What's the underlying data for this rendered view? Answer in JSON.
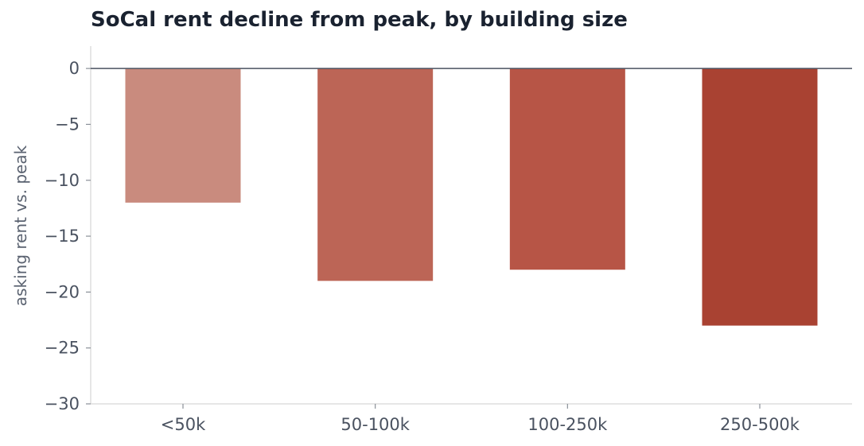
{
  "chart_data": {
    "type": "bar",
    "title": "SoCal rent decline from peak, by building size",
    "xlabel": "",
    "ylabel": "asking rent vs. peak",
    "categories": [
      "<50k",
      "50-100k",
      "100-250k",
      "250-500k"
    ],
    "values": [
      -12,
      -19,
      -18,
      -23
    ],
    "colors": [
      "#c98b7e",
      "#bc6556",
      "#b75546",
      "#a94232"
    ],
    "ylim": [
      -30,
      2
    ],
    "yticks": [
      0,
      -5,
      -10,
      -15,
      -20,
      -25,
      -30
    ],
    "ytick_labels": [
      "0",
      "−5",
      "−10",
      "−15",
      "−20",
      "−25",
      "−30"
    ],
    "grid": false,
    "zero_line_color": "#4a5260",
    "axis_color": "#dddddd"
  }
}
